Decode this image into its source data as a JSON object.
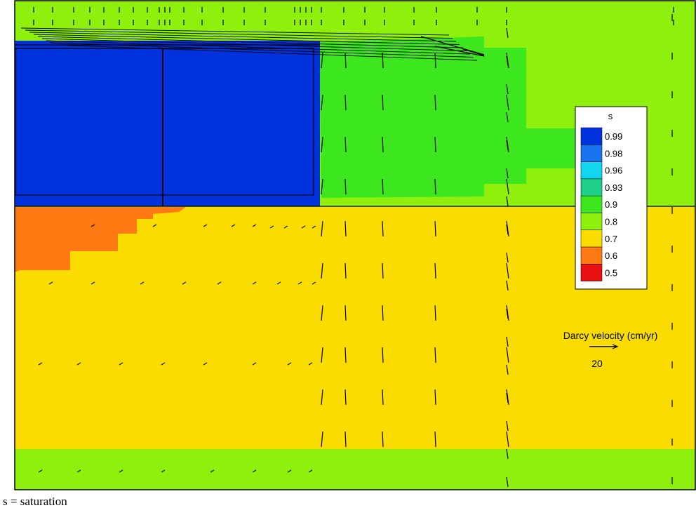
{
  "legend": {
    "title": "s",
    "levels": [
      {
        "label": "0.99",
        "color": "#0033dd"
      },
      {
        "label": "0.98",
        "color": "#1a73ee"
      },
      {
        "label": "0.96",
        "color": "#12d6f0"
      },
      {
        "label": "0.93",
        "color": "#1fd08a"
      },
      {
        "label": "0.9",
        "color": "#3ce81d"
      },
      {
        "label": "0.8",
        "color": "#8ef00c"
      },
      {
        "label": "0.7",
        "color": "#fadc00"
      },
      {
        "label": "0.6",
        "color": "#ff7a12"
      },
      {
        "label": "0.5",
        "color": "#e81010"
      }
    ]
  },
  "velocity_scale": {
    "title": "Darcy velocity (cm/yr)",
    "value": "20"
  },
  "caption": "s = saturation",
  "colors": {
    "plot_background": "#8ef00c",
    "waste_block": "#0033dd",
    "green_zone": "#3ce81d",
    "soil": "#fadc00",
    "dry_corner": "#ff7a12",
    "bottom_layer": "#8ef00c"
  }
}
